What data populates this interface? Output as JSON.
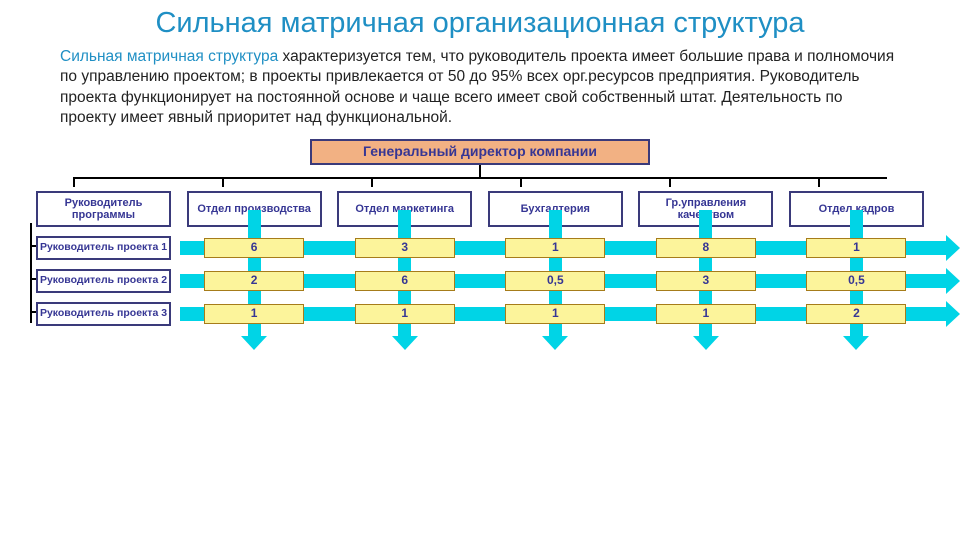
{
  "title": "Сильная матричная организационная структура",
  "description": {
    "intro": "Сильная матричная структура",
    "body": " характеризуется тем, что руководитель проекта имеет большие права и полномочия по управлению проектом; в проекты привлекается от 50 до 95% всех орг.ресурсов предприятия.\n Руководитель проекта функционирует на постоянной основе и чаще всего имеет свой собственный штат.\nДеятельность по проекту имеет явный приоритет над функциональной."
  },
  "diagram": {
    "top": {
      "label": "Генеральный директор компании",
      "fill": "#f2b183",
      "border": "#3a3a7a",
      "text_color": "#363694"
    },
    "dept_style": {
      "fill": "#ffffff",
      "border": "#3a3a7a",
      "text_color": "#363694"
    },
    "departments": [
      "Руководитель программы",
      "Отдел производства",
      "Отдел маркетинга",
      "Бухгалтерия",
      "Гр.управления качеством",
      "Отдел кадров"
    ],
    "project_label_style": {
      "fill": "#ffffff",
      "border": "#3a3a7a",
      "text_color": "#363694"
    },
    "cell_style": {
      "fill": "#fcf49b",
      "border": "#a67c1a",
      "text_color": "#363694"
    },
    "arrow_color": "#00d4e6",
    "projects": [
      {
        "label": "Руководитель проекта 1",
        "values": [
          "6",
          "3",
          "1",
          "8",
          "1"
        ]
      },
      {
        "label": "Руководитель проекта 2",
        "values": [
          "2",
          "6",
          "0,5",
          "3",
          "0,5"
        ]
      },
      {
        "label": "Руководитель проекта 3",
        "values": [
          "1",
          "1",
          "1",
          "1",
          "2"
        ]
      }
    ]
  },
  "colors": {
    "title": "#1f8fc4",
    "text": "#222222",
    "connector": "#000000"
  }
}
